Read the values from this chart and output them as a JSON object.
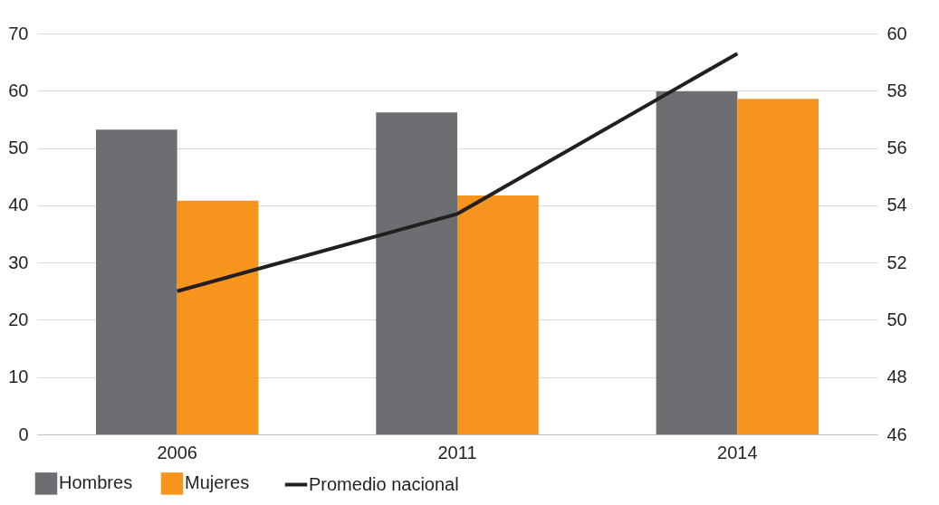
{
  "chart_data": {
    "type": "bar",
    "categories": [
      "2006",
      "2011",
      "2014"
    ],
    "series": [
      {
        "name": "Hombres",
        "color": "#6d6e71",
        "values": [
          53.2,
          56.2,
          59.9
        ]
      },
      {
        "name": "Mujeres",
        "color": "#f7941d",
        "values": [
          40.8,
          41.7,
          58.6
        ]
      },
      {
        "name": "Promedio nacional",
        "type": "line",
        "axis": "y2",
        "color": "#231f20",
        "values": [
          51.0,
          53.7,
          59.3
        ]
      }
    ],
    "ylim": [
      0,
      70
    ],
    "yticks": [
      0,
      10,
      20,
      30,
      40,
      50,
      60,
      70
    ],
    "y2lim": [
      46,
      60
    ],
    "y2ticks": [
      46,
      48,
      50,
      52,
      54,
      56,
      58,
      60
    ],
    "grid": "y",
    "legend": "bottom"
  }
}
